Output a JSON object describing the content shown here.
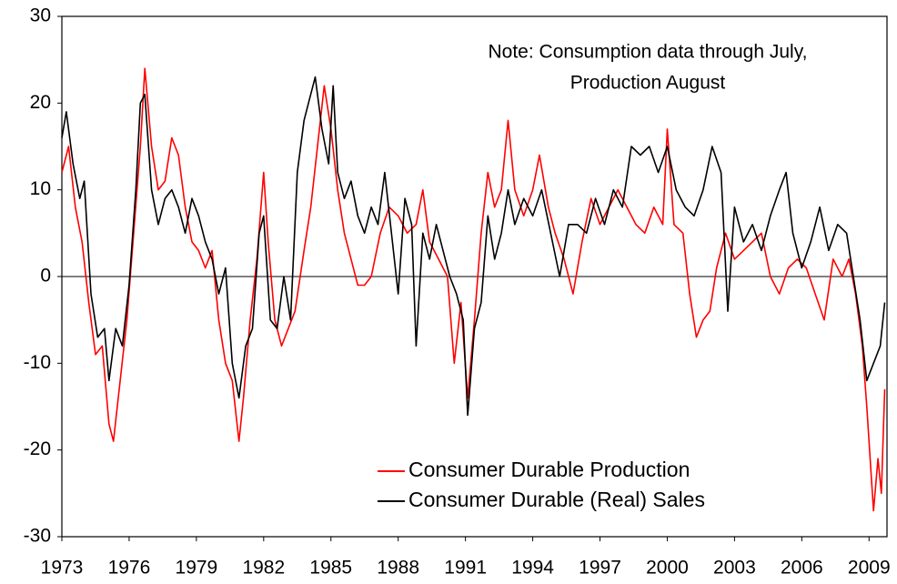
{
  "chart_data": {
    "type": "line",
    "annotation": [
      "Note: Consumption data through July,",
      "Production August"
    ],
    "xlim": [
      1973,
      2009.8
    ],
    "xticks": [
      1973,
      1976,
      1979,
      1982,
      1985,
      1988,
      1991,
      1994,
      1997,
      2000,
      2003,
      2006,
      2009
    ],
    "ylim": [
      -30,
      30
    ],
    "yticks": [
      -30,
      -20,
      -10,
      0,
      10,
      20,
      30
    ],
    "legend": "lower right",
    "series": [
      {
        "name": "Consumer Durable Production",
        "color": "#ff0000",
        "x": [
          1973.0,
          1973.3,
          1973.6,
          1973.9,
          1974.2,
          1974.5,
          1974.8,
          1975.1,
          1975.3,
          1975.6,
          1975.9,
          1976.2,
          1976.5,
          1976.7,
          1977.0,
          1977.3,
          1977.6,
          1977.9,
          1978.2,
          1978.5,
          1978.8,
          1979.1,
          1979.4,
          1979.7,
          1980.0,
          1980.3,
          1980.6,
          1980.9,
          1981.1,
          1981.4,
          1981.7,
          1982.0,
          1982.2,
          1982.5,
          1982.8,
          1983.1,
          1983.4,
          1983.8,
          1984.1,
          1984.4,
          1984.7,
          1985.0,
          1985.3,
          1985.6,
          1985.9,
          1986.2,
          1986.5,
          1986.8,
          1987.2,
          1987.6,
          1988.0,
          1988.4,
          1988.8,
          1989.1,
          1989.4,
          1989.8,
          1990.2,
          1990.5,
          1990.8,
          1991.1,
          1991.4,
          1991.7,
          1992.0,
          1992.3,
          1992.6,
          1992.9,
          1993.2,
          1993.6,
          1994.0,
          1994.3,
          1994.7,
          1995.0,
          1995.4,
          1995.8,
          1996.2,
          1996.6,
          1997.0,
          1997.4,
          1997.8,
          1998.2,
          1998.6,
          1999.0,
          1999.4,
          1999.8,
          2000.0,
          2000.3,
          2000.7,
          2001.0,
          2001.3,
          2001.6,
          2001.9,
          2002.2,
          2002.6,
          2003.0,
          2003.4,
          2003.8,
          2004.2,
          2004.6,
          2005.0,
          2005.4,
          2005.8,
          2006.2,
          2006.6,
          2007.0,
          2007.4,
          2007.8,
          2008.1,
          2008.4,
          2008.7,
          2008.9,
          2009.1,
          2009.2,
          2009.4,
          2009.55,
          2009.7
        ],
        "values": [
          12,
          15,
          8,
          4,
          -3,
          -9,
          -8,
          -17,
          -19,
          -12,
          -5,
          5,
          15,
          24,
          15,
          10,
          11,
          16,
          14,
          8,
          4,
          3,
          1,
          3,
          -5,
          -10,
          -12,
          -19,
          -14,
          -5,
          2,
          12,
          4,
          -5,
          -8,
          -6,
          -4,
          3,
          8,
          15,
          22,
          17,
          10,
          5,
          2,
          -1,
          -1,
          0,
          5,
          8,
          7,
          5,
          6,
          10,
          4,
          2,
          0,
          -10,
          -3,
          -14,
          -5,
          5,
          12,
          8,
          10,
          18,
          10,
          7,
          10,
          14,
          8,
          5,
          2,
          -2,
          4,
          9,
          6,
          8,
          10,
          8,
          6,
          5,
          8,
          6,
          17,
          6,
          5,
          -2,
          -7,
          -5,
          -4,
          1,
          5,
          2,
          3,
          4,
          5,
          0,
          -2,
          1,
          2,
          1,
          -2,
          -5,
          2,
          0,
          2,
          -2,
          -8,
          -15,
          -23,
          -27,
          -21,
          -25,
          -13
        ]
      },
      {
        "name": "Consumer Durable (Real) Sales",
        "color": "#000000",
        "x": [
          1973.0,
          1973.2,
          1973.5,
          1973.8,
          1974.0,
          1974.3,
          1974.6,
          1974.9,
          1975.1,
          1975.4,
          1975.7,
          1976.0,
          1976.3,
          1976.5,
          1976.7,
          1977.0,
          1977.3,
          1977.6,
          1977.9,
          1978.2,
          1978.5,
          1978.8,
          1979.1,
          1979.4,
          1979.7,
          1980.0,
          1980.3,
          1980.6,
          1980.9,
          1981.2,
          1981.5,
          1981.8,
          1982.0,
          1982.3,
          1982.6,
          1982.9,
          1983.2,
          1983.5,
          1983.8,
          1984.0,
          1984.3,
          1984.6,
          1984.9,
          1985.1,
          1985.3,
          1985.6,
          1985.9,
          1986.2,
          1986.5,
          1986.8,
          1987.1,
          1987.4,
          1987.7,
          1988.0,
          1988.3,
          1988.6,
          1988.8,
          1989.1,
          1989.4,
          1989.7,
          1990.0,
          1990.3,
          1990.6,
          1990.9,
          1991.1,
          1991.4,
          1991.7,
          1992.0,
          1992.3,
          1992.6,
          1992.9,
          1993.2,
          1993.6,
          1994.0,
          1994.4,
          1994.8,
          1995.2,
          1995.6,
          1996.0,
          1996.4,
          1996.8,
          1997.2,
          1997.6,
          1998.0,
          1998.4,
          1998.8,
          1999.2,
          1999.6,
          2000.0,
          2000.4,
          2000.8,
          2001.2,
          2001.6,
          2002.0,
          2002.4,
          2002.7,
          2003.0,
          2003.4,
          2003.8,
          2004.2,
          2004.6,
          2005.0,
          2005.3,
          2005.6,
          2006.0,
          2006.4,
          2006.8,
          2007.2,
          2007.6,
          2008.0,
          2008.3,
          2008.6,
          2008.9,
          2009.2,
          2009.5,
          2009.7
        ],
        "values": [
          16,
          19,
          13,
          9,
          11,
          -2,
          -7,
          -6,
          -12,
          -6,
          -8,
          -1,
          10,
          20,
          21,
          10,
          6,
          9,
          10,
          8,
          5,
          9,
          7,
          4,
          2,
          -2,
          1,
          -10,
          -14,
          -8,
          -6,
          5,
          7,
          -5,
          -6,
          0,
          -5,
          12,
          18,
          20,
          23,
          17,
          13,
          22,
          12,
          9,
          11,
          7,
          5,
          8,
          6,
          12,
          5,
          -2,
          9,
          6,
          -8,
          5,
          2,
          6,
          3,
          0,
          -2,
          -5,
          -16,
          -6,
          -3,
          7,
          2,
          5,
          10,
          6,
          9,
          7,
          10,
          5,
          0,
          6,
          6,
          5,
          9,
          6,
          10,
          8,
          15,
          14,
          15,
          12,
          15,
          10,
          8,
          7,
          10,
          15,
          12,
          -4,
          8,
          4,
          6,
          3,
          7,
          10,
          12,
          5,
          1,
          4,
          8,
          3,
          6,
          5,
          0,
          -5,
          -12,
          -10,
          -8,
          -3
        ]
      }
    ]
  }
}
